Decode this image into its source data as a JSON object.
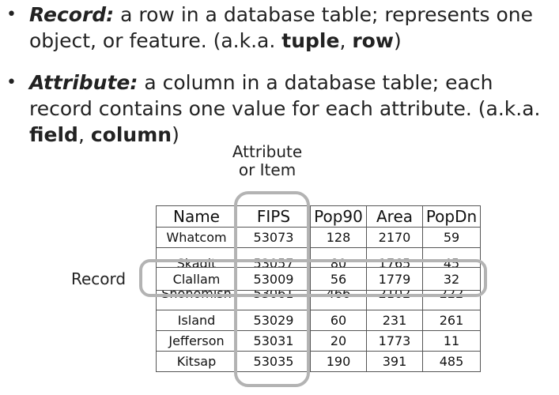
{
  "bullets": [
    {
      "term": "Record:",
      "text_before": " a row in a database table; represents one object, or feature. (a.k.a. ",
      "alias1": "tuple",
      "sep": ", ",
      "alias2": "row",
      "text_after": ")"
    },
    {
      "term": "Attribute:",
      "text_before": " a column in a database table; each record contains one value for each attribute. (a.k.a. ",
      "alias1": "field",
      "sep": ", ",
      "alias2": "column",
      "text_after": ")"
    }
  ],
  "diagram": {
    "attribute_label_line1": "Attribute",
    "attribute_label_line2": "or Item",
    "record_label": "Record",
    "highlight_color": "#b3b3b3"
  },
  "table": {
    "headers": [
      "Name",
      "FIPS",
      "Pop90",
      "Area",
      "PopDn"
    ],
    "rows": [
      [
        "Whatcom",
        "53073",
        "128",
        "2170",
        "59"
      ],
      [
        "Skagit",
        "53057",
        "80",
        "1765",
        "45"
      ],
      [
        "Clallam",
        "53009",
        "56",
        "1779",
        "32"
      ],
      [
        "Snohomish",
        "53061",
        "466",
        "2102",
        "222"
      ],
      [
        "Island",
        "53029",
        "60",
        "231",
        "261"
      ],
      [
        "Jefferson",
        "53031",
        "20",
        "1773",
        "11"
      ],
      [
        "Kitsap",
        "53035",
        "190",
        "391",
        "485"
      ]
    ]
  }
}
